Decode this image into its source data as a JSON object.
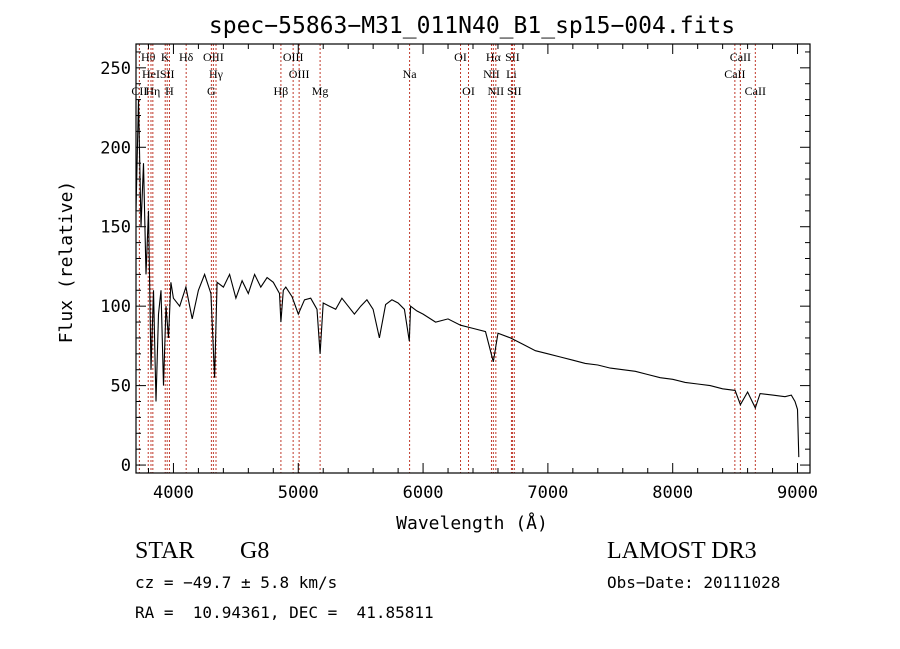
{
  "chart_data": {
    "type": "line",
    "title": "spec−55863−M31_011N40_B1_sp15−004.fits",
    "xlabel": "Wavelength (Å)",
    "ylabel": "Flux (relative)",
    "xlim": [
      3700,
      9100
    ],
    "ylim": [
      -5,
      265
    ],
    "xticks": [
      4000,
      5000,
      6000,
      7000,
      8000,
      9000
    ],
    "yticks": [
      0,
      50,
      100,
      150,
      200,
      250
    ],
    "series": [
      {
        "name": "spectrum",
        "x": [
          3700,
          3720,
          3740,
          3760,
          3780,
          3800,
          3820,
          3840,
          3860,
          3880,
          3900,
          3920,
          3940,
          3960,
          3980,
          4000,
          4050,
          4100,
          4150,
          4200,
          4250,
          4300,
          4330,
          4350,
          4400,
          4450,
          4500,
          4550,
          4600,
          4650,
          4700,
          4750,
          4800,
          4850,
          4861,
          4880,
          4900,
          4950,
          5000,
          5050,
          5100,
          5150,
          5175,
          5200,
          5250,
          5300,
          5350,
          5400,
          5450,
          5500,
          5550,
          5600,
          5650,
          5700,
          5750,
          5800,
          5850,
          5890,
          5900,
          5950,
          6000,
          6100,
          6200,
          6300,
          6400,
          6500,
          6563,
          6600,
          6700,
          6800,
          6900,
          7000,
          7100,
          7200,
          7300,
          7400,
          7500,
          7600,
          7700,
          7800,
          7900,
          8000,
          8100,
          8200,
          8300,
          8400,
          8500,
          8542,
          8600,
          8662,
          8700,
          8800,
          8900,
          8950,
          8980,
          9000,
          9010
        ],
        "y": [
          160,
          230,
          150,
          190,
          120,
          160,
          60,
          110,
          40,
          95,
          110,
          50,
          100,
          80,
          115,
          105,
          100,
          112,
          92,
          110,
          120,
          108,
          55,
          115,
          112,
          120,
          105,
          116,
          108,
          120,
          112,
          118,
          115,
          108,
          90,
          110,
          112,
          106,
          95,
          104,
          105,
          98,
          70,
          102,
          100,
          98,
          105,
          100,
          95,
          100,
          104,
          98,
          80,
          101,
          104,
          102,
          98,
          78,
          100,
          97,
          95,
          90,
          92,
          88,
          86,
          84,
          65,
          83,
          80,
          76,
          72,
          70,
          68,
          66,
          64,
          63,
          61,
          60,
          59,
          57,
          55,
          54,
          52,
          51,
          50,
          48,
          47,
          38,
          46,
          36,
          45,
          44,
          43,
          44,
          40,
          35,
          5
        ]
      }
    ],
    "lines": [
      {
        "name": "CII",
        "wave": 3727,
        "row": 3
      },
      {
        "name": "Hθ",
        "wave": 3798,
        "row": 1
      },
      {
        "name": "HeI",
        "wave": 3820,
        "row": 2
      },
      {
        "name": "Hη",
        "wave": 3835,
        "row": 3
      },
      {
        "name": "K",
        "wave": 3934,
        "row": 1
      },
      {
        "name": "SII",
        "wave": 3950,
        "row": 2
      },
      {
        "name": "H",
        "wave": 3968,
        "row": 3
      },
      {
        "name": "Hδ",
        "wave": 4102,
        "row": 1
      },
      {
        "name": "OIII",
        "wave": 4320,
        "row": 1
      },
      {
        "name": "Hγ",
        "wave": 4341,
        "row": 2
      },
      {
        "name": "G",
        "wave": 4304,
        "row": 3
      },
      {
        "name": "Hβ",
        "wave": 4861,
        "row": 3
      },
      {
        "name": "OIII",
        "wave": 4959,
        "row": 1
      },
      {
        "name": "OIII",
        "wave": 5007,
        "row": 2
      },
      {
        "name": "Mg",
        "wave": 5175,
        "row": 3
      },
      {
        "name": "Na",
        "wave": 5892,
        "row": 2
      },
      {
        "name": "OI",
        "wave": 6300,
        "row": 1
      },
      {
        "name": "OI",
        "wave": 6364,
        "row": 3
      },
      {
        "name": "Hα",
        "wave": 6563,
        "row": 1
      },
      {
        "name": "NII",
        "wave": 6548,
        "row": 2
      },
      {
        "name": "NII",
        "wave": 6583,
        "row": 3
      },
      {
        "name": "SII",
        "wave": 6716,
        "row": 1
      },
      {
        "name": "Li",
        "wave": 6708,
        "row": 2
      },
      {
        "name": "SII",
        "wave": 6731,
        "row": 3
      },
      {
        "name": "CaII",
        "wave": 8498,
        "row": 2
      },
      {
        "name": "CaII",
        "wave": 8542,
        "row": 1
      },
      {
        "name": "CaII",
        "wave": 8662,
        "row": 3
      }
    ]
  },
  "info": {
    "object_class": "STAR",
    "subclass": "G8",
    "survey": "LAMOST DR3",
    "cz": "cz = −49.7 ± 5.8 km/s",
    "obs_date": "Obs−Date: 20111028",
    "radec": "RA =  10.94361, DEC =  41.85811"
  }
}
